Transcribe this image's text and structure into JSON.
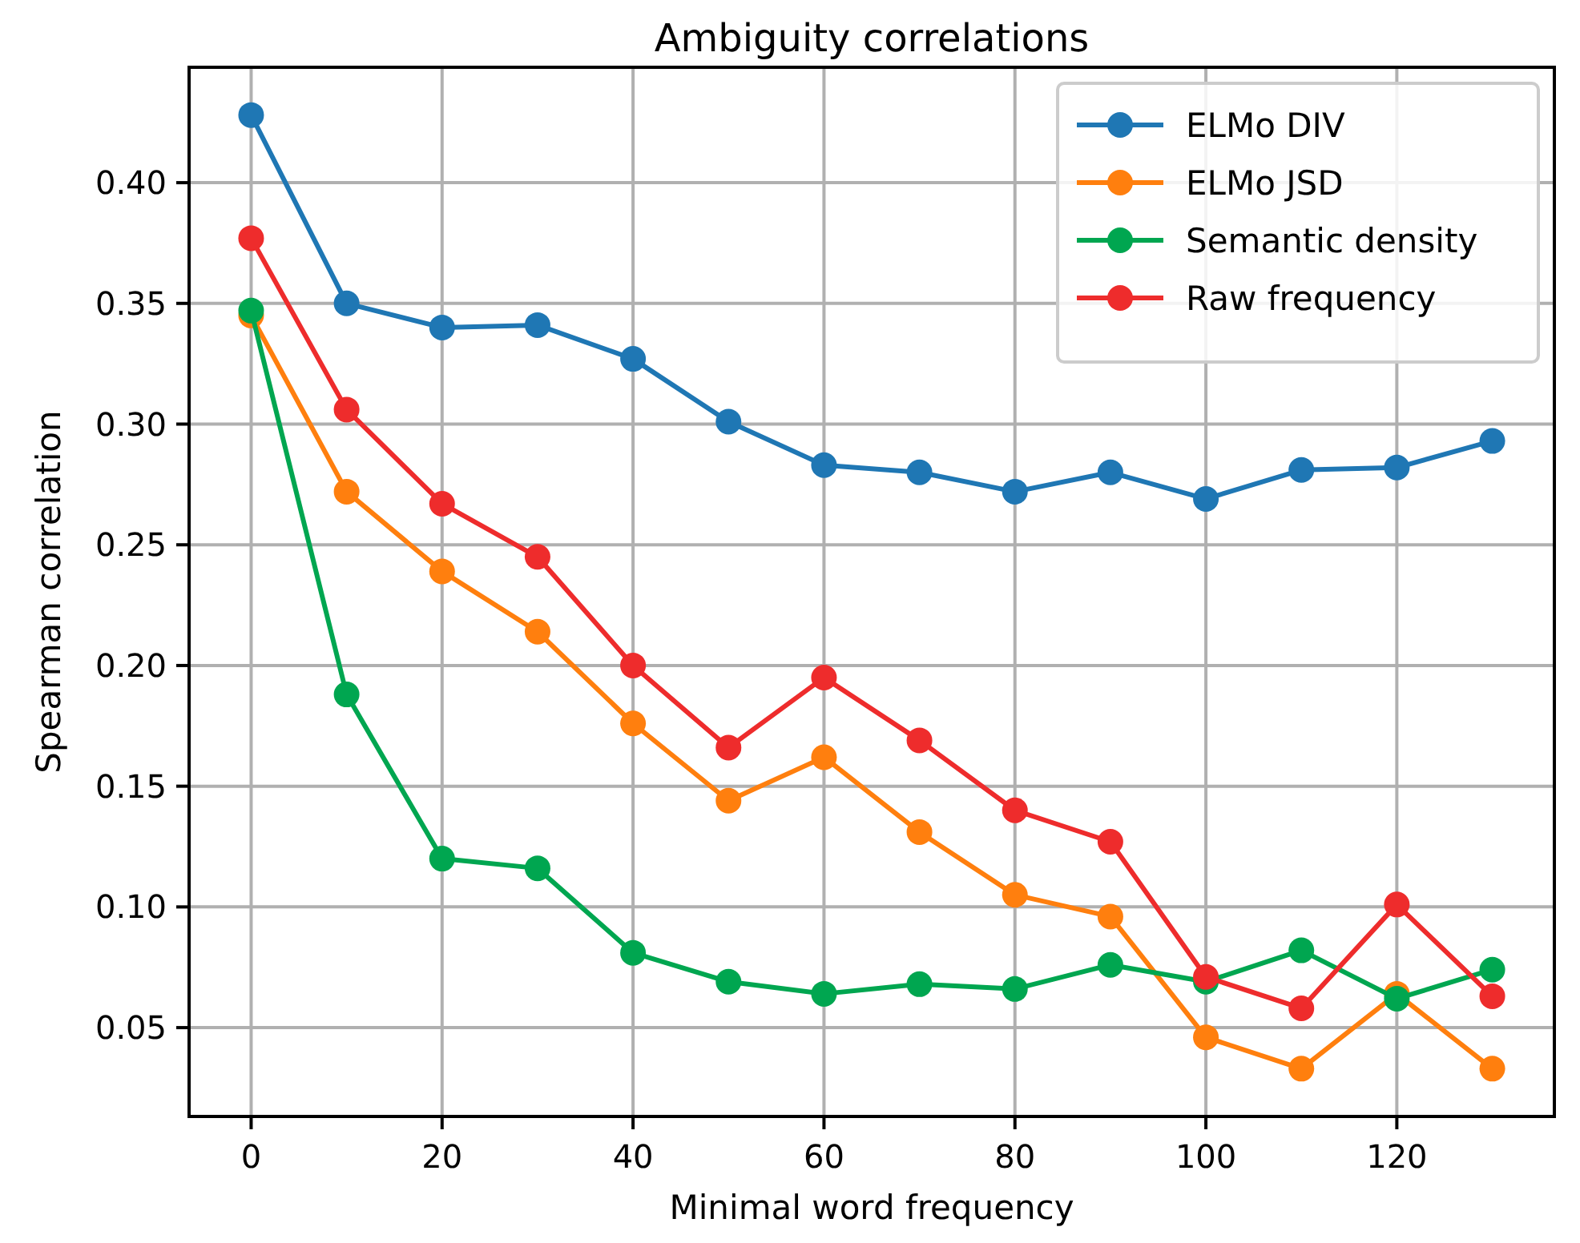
{
  "chart_data": {
    "type": "line",
    "title": "Ambiguity correlations",
    "xlabel": "Minimal word frequency",
    "ylabel": "Spearman correlation",
    "x": [
      0,
      10,
      20,
      30,
      40,
      50,
      60,
      70,
      80,
      90,
      100,
      110,
      120,
      130
    ],
    "series": [
      {
        "name": "ELMo DIV",
        "color": "#1f77b4",
        "values": [
          0.428,
          0.35,
          0.34,
          0.341,
          0.327,
          0.301,
          0.283,
          0.28,
          0.272,
          0.28,
          0.269,
          0.281,
          0.282,
          0.293
        ]
      },
      {
        "name": "ELMo JSD",
        "color": "#ff7f0e",
        "values": [
          0.345,
          0.272,
          0.239,
          0.214,
          0.176,
          0.144,
          0.162,
          0.131,
          0.105,
          0.096,
          0.046,
          0.033,
          0.064,
          0.033
        ]
      },
      {
        "name": "Semantic density",
        "color": "#00a650",
        "values": [
          0.347,
          0.188,
          0.12,
          0.116,
          0.081,
          0.069,
          0.064,
          0.068,
          0.066,
          0.076,
          0.069,
          0.082,
          0.062,
          0.074
        ]
      },
      {
        "name": "Raw frequency",
        "color": "#ee2c2c",
        "values": [
          0.377,
          0.306,
          0.267,
          0.245,
          0.2,
          0.166,
          0.195,
          0.169,
          0.14,
          0.127,
          0.071,
          0.058,
          0.101,
          0.063
        ]
      }
    ],
    "xlim": [
      -6.5,
      136.5
    ],
    "ylim": [
      0.0132,
      0.4478
    ],
    "xticks": [
      0,
      20,
      40,
      60,
      80,
      100,
      120
    ],
    "yticks": [
      {
        "value": 0.05,
        "label": "0.05"
      },
      {
        "value": 0.1,
        "label": "0.10"
      },
      {
        "value": 0.15,
        "label": "0.15"
      },
      {
        "value": 0.2,
        "label": "0.20"
      },
      {
        "value": 0.25,
        "label": "0.25"
      },
      {
        "value": 0.3,
        "label": "0.30"
      },
      {
        "value": 0.35,
        "label": "0.35"
      },
      {
        "value": 0.4,
        "label": "0.40"
      }
    ],
    "grid": true,
    "legend": "top right",
    "marker": "circle",
    "line_style": "solid"
  }
}
